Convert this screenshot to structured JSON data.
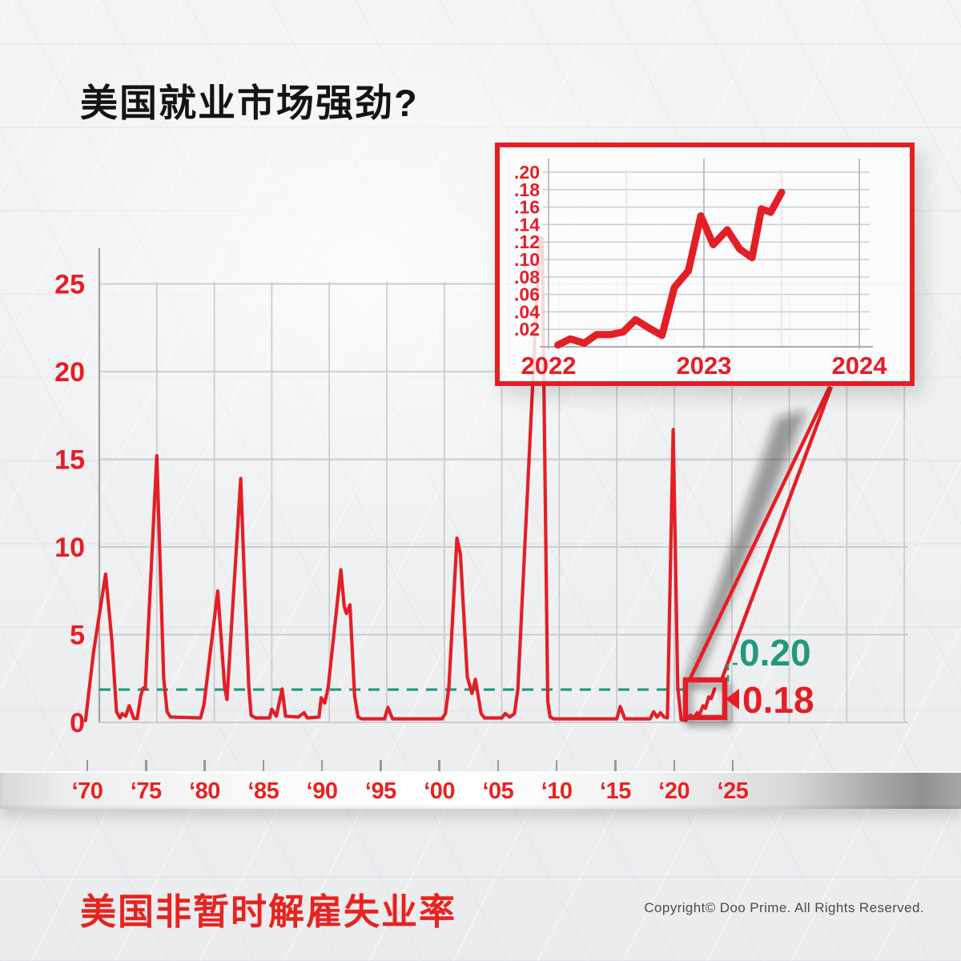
{
  "page": {
    "title": "美国就业市场强劲?",
    "footer_title": "美国非暂时解雇失业率",
    "copyright": "Copyright© Doo Prime. All Rights Reserved."
  },
  "colors": {
    "red": "#e41e26",
    "green": "#22987c",
    "grid": "#c7c8ca",
    "axis": "#9fa1a3",
    "title_black": "#141414",
    "copyright_gray": "#4b4b4b"
  },
  "callout": {
    "upper_label": "0.20",
    "lower_label": "0.18",
    "arrow_icon": "left-triangle-icon"
  },
  "chart_data": [
    {
      "id": "main",
      "type": "line",
      "title": "美国非暂时解雇失业率",
      "xlabel": "",
      "ylabel": "",
      "ylim": [
        0,
        25
      ],
      "xlim": [
        1970,
        2035
      ],
      "grid": true,
      "y_tick_labels": [
        "0",
        "5",
        "10",
        "15",
        "20",
        "25"
      ],
      "y_tick_values": [
        0,
        5,
        10,
        15,
        20,
        25
      ],
      "x_tick_labels": [
        "‘70",
        "‘75",
        "‘80",
        "‘85",
        "‘90",
        "‘95",
        "‘00",
        "‘05",
        "‘10",
        "‘15",
        "‘20",
        "‘25"
      ],
      "x_tick_years": [
        1970,
        1975,
        1980,
        1985,
        1990,
        1995,
        2000,
        2005,
        2010,
        2015,
        2020,
        2025
      ],
      "threshold": {
        "drawn_level": 1.87,
        "label": "0.20",
        "color": "#22987c"
      },
      "highlight_box_years": [
        2021.0,
        2023.8
      ],
      "series": [
        {
          "name": "us-non-temporary-layoff-unemployment-rate",
          "points": [
            [
              1968.8,
              0.1
            ],
            [
              1969.5,
              4.0
            ],
            [
              1970.55,
              8.45
            ],
            [
              1971.1,
              4.6
            ],
            [
              1971.5,
              0.6
            ],
            [
              1971.8,
              0.25
            ],
            [
              1972.0,
              0.5
            ],
            [
              1972.3,
              0.35
            ],
            [
              1972.6,
              0.95
            ],
            [
              1973.0,
              0.22
            ],
            [
              1973.3,
              0.22
            ],
            [
              1973.6,
              1.5
            ],
            [
              1973.8,
              1.95
            ],
            [
              1974.0,
              1.9
            ],
            [
              1975.0,
              15.2
            ],
            [
              1975.6,
              2.5
            ],
            [
              1975.9,
              0.6
            ],
            [
              1976.2,
              0.3
            ],
            [
              1978.8,
              0.25
            ],
            [
              1979.1,
              1.0
            ],
            [
              1980.3,
              7.5
            ],
            [
              1980.9,
              2.0
            ],
            [
              1981.1,
              1.3
            ],
            [
              1982.3,
              13.9
            ],
            [
              1982.6,
              8.5
            ],
            [
              1983.0,
              2.0
            ],
            [
              1983.2,
              0.4
            ],
            [
              1983.6,
              0.25
            ],
            [
              1984.8,
              0.25
            ],
            [
              1985.0,
              0.75
            ],
            [
              1985.4,
              0.35
            ],
            [
              1985.9,
              1.9
            ],
            [
              1986.2,
              0.35
            ],
            [
              1987.3,
              0.3
            ],
            [
              1987.8,
              0.55
            ],
            [
              1988.1,
              0.25
            ],
            [
              1989.1,
              0.3
            ],
            [
              1989.3,
              1.4
            ],
            [
              1989.6,
              1.1
            ],
            [
              1989.9,
              2.0
            ],
            [
              1991.0,
              8.7
            ],
            [
              1991.3,
              6.6
            ],
            [
              1991.5,
              6.2
            ],
            [
              1991.8,
              6.7
            ],
            [
              1992.2,
              1.5
            ],
            [
              1992.5,
              0.3
            ],
            [
              1992.8,
              0.2
            ],
            [
              1994.8,
              0.2
            ],
            [
              1995.1,
              0.85
            ],
            [
              1995.5,
              0.2
            ],
            [
              1999.8,
              0.2
            ],
            [
              2000.1,
              0.5
            ],
            [
              2000.4,
              2.0
            ],
            [
              2001.1,
              10.5
            ],
            [
              2001.4,
              9.6
            ],
            [
              2002.0,
              2.6
            ],
            [
              2002.4,
              1.65
            ],
            [
              2002.7,
              2.45
            ],
            [
              2003.2,
              0.5
            ],
            [
              2003.5,
              0.25
            ],
            [
              2005.0,
              0.25
            ],
            [
              2005.3,
              0.5
            ],
            [
              2005.7,
              0.3
            ],
            [
              2006.1,
              0.5
            ],
            [
              2006.4,
              1.9
            ],
            [
              2008.3,
              27.6
            ],
            [
              2008.5,
              27.6
            ],
            [
              2009.0,
              1.2
            ],
            [
              2009.2,
              0.3
            ],
            [
              2009.5,
              0.2
            ],
            [
              2015.0,
              0.2
            ],
            [
              2015.3,
              0.9
            ],
            [
              2015.7,
              0.2
            ],
            [
              2017.9,
              0.2
            ],
            [
              2018.2,
              0.6
            ],
            [
              2018.5,
              0.3
            ],
            [
              2018.8,
              0.55
            ],
            [
              2019.1,
              0.3
            ],
            [
              2019.4,
              0.25
            ],
            [
              2019.9,
              16.7
            ],
            [
              2020.3,
              2.0
            ],
            [
              2020.6,
              0.15
            ],
            [
              2021.0,
              0.12
            ],
            [
              2021.4,
              0.4
            ],
            [
              2021.7,
              0.25
            ],
            [
              2022.0,
              0.55
            ],
            [
              2022.2,
              0.45
            ],
            [
              2022.5,
              0.95
            ],
            [
              2022.7,
              0.8
            ],
            [
              2023.0,
              1.45
            ],
            [
              2023.2,
              1.35
            ],
            [
              2023.5,
              1.9
            ]
          ]
        }
      ]
    },
    {
      "id": "inset-zoom",
      "type": "line",
      "xlabel": "",
      "ylabel": "",
      "ylim": [
        0,
        0.21
      ],
      "xlim": [
        2021.9,
        2024.2
      ],
      "grid": true,
      "y_tick_labels": [
        ".20",
        ".18",
        ".16",
        ".14",
        ".12",
        ".10",
        ".08",
        ".06",
        ".04",
        ".02"
      ],
      "y_tick_values": [
        0.2,
        0.18,
        0.16,
        0.14,
        0.12,
        0.1,
        0.08,
        0.06,
        0.04,
        0.02
      ],
      "x_tick_labels": [
        "2022",
        "2023",
        "2024"
      ],
      "x_tick_years": [
        2022,
        2023,
        2024
      ],
      "series": [
        {
          "name": "zoomed-rate-2022-2023",
          "points": [
            [
              2022.06,
              0.002
            ],
            [
              2022.14,
              0.009
            ],
            [
              2022.23,
              0.004
            ],
            [
              2022.31,
              0.014
            ],
            [
              2022.4,
              0.014
            ],
            [
              2022.48,
              0.017
            ],
            [
              2022.56,
              0.031
            ],
            [
              2022.65,
              0.021
            ],
            [
              2022.73,
              0.013
            ],
            [
              2022.81,
              0.068
            ],
            [
              2022.9,
              0.087
            ],
            [
              2022.98,
              0.15
            ],
            [
              2023.06,
              0.117
            ],
            [
              2023.15,
              0.134
            ],
            [
              2023.23,
              0.112
            ],
            [
              2023.31,
              0.102
            ],
            [
              2023.37,
              0.158
            ],
            [
              2023.43,
              0.154
            ],
            [
              2023.5,
              0.177
            ]
          ]
        }
      ]
    }
  ]
}
